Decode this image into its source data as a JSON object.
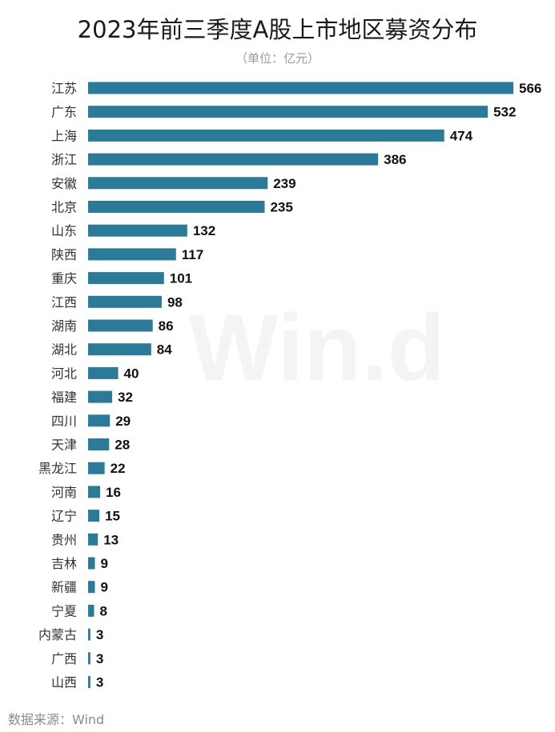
{
  "chart_data": {
    "type": "bar",
    "orientation": "horizontal",
    "title": "2023年前三季度A股上市地区募资分布",
    "subtitle": "（单位：亿元）",
    "source": "数据来源：Wind",
    "watermark": "Win.d",
    "bar_color": "#2b7a9a",
    "categories": [
      "江苏",
      "广东",
      "上海",
      "浙江",
      "安徽",
      "北京",
      "山东",
      "陕西",
      "重庆",
      "江西",
      "湖南",
      "湖北",
      "河北",
      "福建",
      "四川",
      "天津",
      "黑龙江",
      "河南",
      "辽宁",
      "贵州",
      "吉林",
      "新疆",
      "宁夏",
      "内蒙古",
      "广西",
      "山西"
    ],
    "values": [
      566,
      532,
      474,
      386,
      239,
      235,
      132,
      117,
      101,
      98,
      86,
      84,
      40,
      32,
      29,
      28,
      22,
      16,
      15,
      13,
      9,
      9,
      8,
      3,
      3,
      3
    ],
    "xlim": [
      0,
      566
    ],
    "grid": false,
    "legend": "none"
  }
}
